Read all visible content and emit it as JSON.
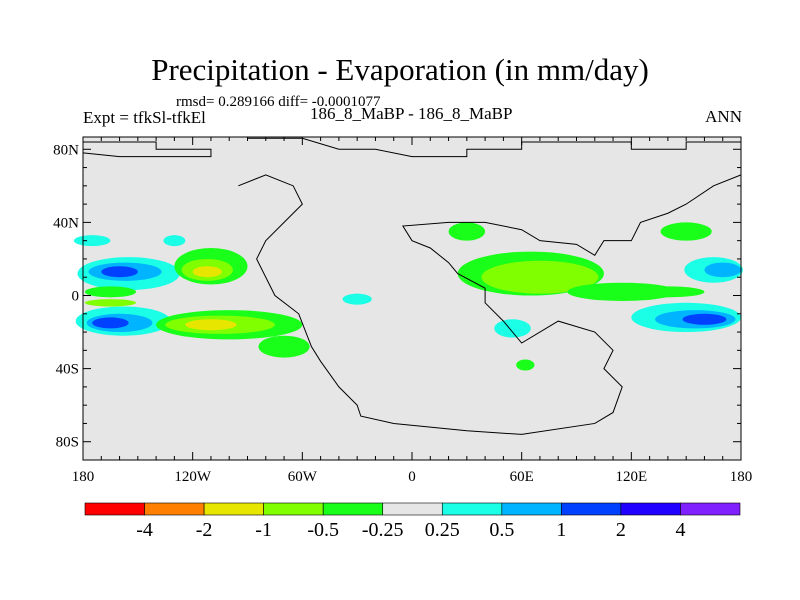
{
  "chart_data": {
    "type": "heatmap",
    "title": "Precipitation - Evaporation (in mm/day)",
    "subtitle": "rmsd= 0.289166 diff= -0.0001077",
    "left_label": "Expt = tfkSl-tfkEl",
    "center_label": "186_8_MaBP - 186_8_MaBP",
    "right_label": "ANN",
    "lon_ticks": [
      {
        "value": -180,
        "label": "180"
      },
      {
        "value": -120,
        "label": "120W"
      },
      {
        "value": -60,
        "label": "60W"
      },
      {
        "value": 0,
        "label": "0"
      },
      {
        "value": 60,
        "label": "60E"
      },
      {
        "value": 120,
        "label": "120E"
      },
      {
        "value": 180,
        "label": "180"
      }
    ],
    "lat_ticks": [
      {
        "value": 80,
        "label": "80N"
      },
      {
        "value": 40,
        "label": "40N"
      },
      {
        "value": 0,
        "label": "0"
      },
      {
        "value": -40,
        "label": "40S"
      },
      {
        "value": -80,
        "label": "80S"
      }
    ],
    "xlim": [
      -180,
      180
    ],
    "ylim": [
      -90,
      90
    ],
    "colorbar": {
      "levels": [
        "-4",
        "-2",
        "-1",
        "-0.5",
        "-0.25",
        "0.25",
        "0.5",
        "1",
        "2",
        "4"
      ],
      "colors": [
        "#ff0000",
        "#ff8000",
        "#e6e600",
        "#80ff00",
        "#1aff1a",
        "#e6e6e6",
        "#1affe6",
        "#00b4ff",
        "#0040ff",
        "#2000ff",
        "#8020ff"
      ]
    },
    "features": [
      {
        "name": "N Pacific band",
        "lon": -160,
        "lat": 14,
        "level": "1 to 2"
      },
      {
        "name": "S Pacific band",
        "lon": -160,
        "lat": -15,
        "level": "1 to 2"
      },
      {
        "name": "E Pacific N",
        "lon": -115,
        "lat": 12,
        "level": "-1 to -2"
      },
      {
        "name": "E Pacific S",
        "lon": -105,
        "lat": -16,
        "level": "-1 to -2"
      },
      {
        "name": "Indian Ocean N",
        "lon": 65,
        "lat": 10,
        "level": "-0.5 to -1"
      },
      {
        "name": "Indian Ocean S",
        "lon": 150,
        "lat": -12,
        "level": "1 to 2"
      }
    ]
  }
}
